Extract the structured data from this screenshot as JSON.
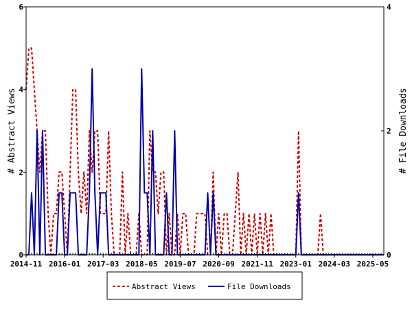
{
  "chart_data": {
    "type": "line",
    "title": "",
    "left_axis": {
      "label": "# Abstract Views",
      "ylim": [
        0,
        6
      ],
      "ticks": [
        "0",
        "2",
        "4",
        "6"
      ]
    },
    "right_axis": {
      "label": "# File Downloads",
      "ylim": [
        0,
        4
      ],
      "ticks": [
        "0",
        "2",
        "4"
      ]
    },
    "x_tick_labels": [
      "2014-11",
      "2016-01",
      "2017-03",
      "2018-05",
      "2019-07",
      "2020-09",
      "2021-11",
      "2023-01",
      "2024-03",
      "2025-05"
    ],
    "x_range": [
      "2014-11",
      "2025-09"
    ],
    "grid": false,
    "legend_position": "bottom-center",
    "series": [
      {
        "name": "Abstract Views",
        "axis": "left",
        "color": "#cc0000",
        "style": "dashed",
        "points": [
          [
            "2014-11",
            4
          ],
          [
            "2014-12",
            5
          ],
          [
            "2015-01",
            5
          ],
          [
            "2015-02",
            4
          ],
          [
            "2015-03",
            3
          ],
          [
            "2015-04",
            2
          ],
          [
            "2015-05",
            3
          ],
          [
            "2015-06",
            3
          ],
          [
            "2015-07",
            1
          ],
          [
            "2015-08",
            0
          ],
          [
            "2015-09",
            1
          ],
          [
            "2015-10",
            1
          ],
          [
            "2015-11",
            2
          ],
          [
            "2015-12",
            2
          ],
          [
            "2016-01",
            1
          ],
          [
            "2016-02",
            0
          ],
          [
            "2016-03",
            2
          ],
          [
            "2016-04",
            4
          ],
          [
            "2016-05",
            4
          ],
          [
            "2016-06",
            2
          ],
          [
            "2016-07",
            1
          ],
          [
            "2016-08",
            2
          ],
          [
            "2016-09",
            1
          ],
          [
            "2016-10",
            3
          ],
          [
            "2016-11",
            2
          ],
          [
            "2016-12",
            3
          ],
          [
            "2017-01",
            3
          ],
          [
            "2017-02",
            1
          ],
          [
            "2017-03",
            1
          ],
          [
            "2017-04",
            1
          ],
          [
            "2017-05",
            3
          ],
          [
            "2017-06",
            1
          ],
          [
            "2017-07",
            0
          ],
          [
            "2017-08",
            0
          ],
          [
            "2017-09",
            0
          ],
          [
            "2017-10",
            2
          ],
          [
            "2017-11",
            0
          ],
          [
            "2017-12",
            1
          ],
          [
            "2018-01",
            0
          ],
          [
            "2018-02",
            0
          ],
          [
            "2018-03",
            0
          ],
          [
            "2018-04",
            1
          ],
          [
            "2018-05",
            0
          ],
          [
            "2018-06",
            0
          ],
          [
            "2018-07",
            0
          ],
          [
            "2018-08",
            3
          ],
          [
            "2018-09",
            2
          ],
          [
            "2018-10",
            2
          ],
          [
            "2018-11",
            1
          ],
          [
            "2018-12",
            2
          ],
          [
            "2019-01",
            2
          ],
          [
            "2019-02",
            0
          ],
          [
            "2019-03",
            1
          ],
          [
            "2019-04",
            0
          ],
          [
            "2019-05",
            0
          ],
          [
            "2019-06",
            1
          ],
          [
            "2019-07",
            0
          ],
          [
            "2019-08",
            1
          ],
          [
            "2019-09",
            1
          ],
          [
            "2019-10",
            0
          ],
          [
            "2019-11",
            0
          ],
          [
            "2019-12",
            0
          ],
          [
            "2020-01",
            1
          ],
          [
            "2020-02",
            1
          ],
          [
            "2020-03",
            1
          ],
          [
            "2020-04",
            1
          ],
          [
            "2020-05",
            0
          ],
          [
            "2020-06",
            0
          ],
          [
            "2020-07",
            2
          ],
          [
            "2020-08",
            0
          ],
          [
            "2020-09",
            1
          ],
          [
            "2020-10",
            0
          ],
          [
            "2020-11",
            1
          ],
          [
            "2020-12",
            1
          ],
          [
            "2021-01",
            0
          ],
          [
            "2021-02",
            0
          ],
          [
            "2021-03",
            1
          ],
          [
            "2021-04",
            2
          ],
          [
            "2021-05",
            0
          ],
          [
            "2021-06",
            1
          ],
          [
            "2021-07",
            0
          ],
          [
            "2021-08",
            1
          ],
          [
            "2021-09",
            0
          ],
          [
            "2021-10",
            1
          ],
          [
            "2021-11",
            0
          ],
          [
            "2021-12",
            1
          ],
          [
            "2022-01",
            0
          ],
          [
            "2022-02",
            1
          ],
          [
            "2022-03",
            0
          ],
          [
            "2022-04",
            1
          ],
          [
            "2022-05",
            0
          ],
          [
            "2022-06",
            0
          ],
          [
            "2022-07",
            0
          ],
          [
            "2022-08",
            0
          ],
          [
            "2022-09",
            0
          ],
          [
            "2022-10",
            0
          ],
          [
            "2022-11",
            0
          ],
          [
            "2022-12",
            0
          ],
          [
            "2023-01",
            0
          ],
          [
            "2023-02",
            3
          ],
          [
            "2023-03",
            0
          ],
          [
            "2023-04",
            0
          ],
          [
            "2023-05",
            0
          ],
          [
            "2023-06",
            0
          ],
          [
            "2023-07",
            0
          ],
          [
            "2023-08",
            0
          ],
          [
            "2023-09",
            0
          ],
          [
            "2023-10",
            1
          ],
          [
            "2023-11",
            0
          ],
          [
            "2023-12",
            0
          ],
          [
            "2024-01",
            0
          ],
          [
            "2024-02",
            0
          ],
          [
            "2024-03",
            0
          ],
          [
            "2024-04",
            0
          ],
          [
            "2024-05",
            0
          ],
          [
            "2024-06",
            0
          ],
          [
            "2024-07",
            0
          ],
          [
            "2024-08",
            0
          ],
          [
            "2024-09",
            0
          ],
          [
            "2024-10",
            0
          ],
          [
            "2024-11",
            0
          ],
          [
            "2024-12",
            0
          ],
          [
            "2025-01",
            0
          ],
          [
            "2025-02",
            0
          ],
          [
            "2025-03",
            0
          ],
          [
            "2025-04",
            0
          ],
          [
            "2025-05",
            0
          ],
          [
            "2025-06",
            0
          ],
          [
            "2025-07",
            0
          ],
          [
            "2025-08",
            0
          ],
          [
            "2025-09",
            0
          ]
        ]
      },
      {
        "name": "File Downloads",
        "axis": "right",
        "color": "#0000aa",
        "style": "solid",
        "points": [
          [
            "2014-11",
            0
          ],
          [
            "2014-12",
            0
          ],
          [
            "2015-01",
            1
          ],
          [
            "2015-02",
            0
          ],
          [
            "2015-03",
            2
          ],
          [
            "2015-04",
            0
          ],
          [
            "2015-05",
            2
          ],
          [
            "2015-06",
            0
          ],
          [
            "2015-07",
            0
          ],
          [
            "2015-08",
            0
          ],
          [
            "2015-09",
            0
          ],
          [
            "2015-10",
            0
          ],
          [
            "2015-11",
            1
          ],
          [
            "2015-12",
            1
          ],
          [
            "2016-01",
            0
          ],
          [
            "2016-02",
            0
          ],
          [
            "2016-03",
            1
          ],
          [
            "2016-04",
            1
          ],
          [
            "2016-05",
            1
          ],
          [
            "2016-06",
            0
          ],
          [
            "2016-07",
            0
          ],
          [
            "2016-08",
            0
          ],
          [
            "2016-09",
            0
          ],
          [
            "2016-10",
            1
          ],
          [
            "2016-11",
            3
          ],
          [
            "2016-12",
            1
          ],
          [
            "2017-01",
            0
          ],
          [
            "2017-02",
            1
          ],
          [
            "2017-03",
            1
          ],
          [
            "2017-04",
            1
          ],
          [
            "2017-05",
            0
          ],
          [
            "2017-06",
            0
          ],
          [
            "2017-07",
            0
          ],
          [
            "2017-08",
            0
          ],
          [
            "2017-09",
            0
          ],
          [
            "2017-10",
            0
          ],
          [
            "2017-11",
            0
          ],
          [
            "2017-12",
            0
          ],
          [
            "2018-01",
            0
          ],
          [
            "2018-02",
            0
          ],
          [
            "2018-03",
            0
          ],
          [
            "2018-04",
            0
          ],
          [
            "2018-05",
            3
          ],
          [
            "2018-06",
            1
          ],
          [
            "2018-07",
            1
          ],
          [
            "2018-08",
            0
          ],
          [
            "2018-09",
            2
          ],
          [
            "2018-10",
            0
          ],
          [
            "2018-11",
            0
          ],
          [
            "2018-12",
            0
          ],
          [
            "2019-01",
            0
          ],
          [
            "2019-02",
            1
          ],
          [
            "2019-03",
            0
          ],
          [
            "2019-04",
            0
          ],
          [
            "2019-05",
            2
          ],
          [
            "2019-06",
            0
          ],
          [
            "2019-07",
            0
          ],
          [
            "2019-08",
            0
          ],
          [
            "2019-09",
            0
          ],
          [
            "2019-10",
            0
          ],
          [
            "2019-11",
            0
          ],
          [
            "2019-12",
            0
          ],
          [
            "2020-01",
            0
          ],
          [
            "2020-02",
            0
          ],
          [
            "2020-03",
            0
          ],
          [
            "2020-04",
            0
          ],
          [
            "2020-05",
            1
          ],
          [
            "2020-06",
            0
          ],
          [
            "2020-07",
            1
          ],
          [
            "2020-08",
            0
          ],
          [
            "2020-09",
            0
          ],
          [
            "2020-10",
            0
          ],
          [
            "2020-11",
            0
          ],
          [
            "2020-12",
            0
          ],
          [
            "2021-01",
            0
          ],
          [
            "2021-02",
            0
          ],
          [
            "2021-03",
            0
          ],
          [
            "2021-04",
            0
          ],
          [
            "2021-05",
            0
          ],
          [
            "2021-06",
            0
          ],
          [
            "2021-07",
            0
          ],
          [
            "2021-08",
            0
          ],
          [
            "2021-09",
            0
          ],
          [
            "2021-10",
            0
          ],
          [
            "2021-11",
            0
          ],
          [
            "2021-12",
            0
          ],
          [
            "2022-01",
            0
          ],
          [
            "2022-02",
            0
          ],
          [
            "2022-03",
            0
          ],
          [
            "2022-04",
            0
          ],
          [
            "2022-05",
            0
          ],
          [
            "2022-06",
            0
          ],
          [
            "2022-07",
            0
          ],
          [
            "2022-08",
            0
          ],
          [
            "2022-09",
            0
          ],
          [
            "2022-10",
            0
          ],
          [
            "2022-11",
            0
          ],
          [
            "2022-12",
            0
          ],
          [
            "2023-01",
            0
          ],
          [
            "2023-02",
            1
          ],
          [
            "2023-03",
            0
          ],
          [
            "2023-04",
            0
          ],
          [
            "2023-05",
            0
          ],
          [
            "2023-06",
            0
          ],
          [
            "2023-07",
            0
          ],
          [
            "2023-08",
            0
          ],
          [
            "2023-09",
            0
          ],
          [
            "2023-10",
            0
          ],
          [
            "2023-11",
            0
          ],
          [
            "2023-12",
            0
          ],
          [
            "2024-01",
            0
          ],
          [
            "2024-02",
            0
          ],
          [
            "2024-03",
            0
          ],
          [
            "2024-04",
            0
          ],
          [
            "2024-05",
            0
          ],
          [
            "2024-06",
            0
          ],
          [
            "2024-07",
            0
          ],
          [
            "2024-08",
            0
          ],
          [
            "2024-09",
            0
          ],
          [
            "2024-10",
            0
          ],
          [
            "2024-11",
            0
          ],
          [
            "2024-12",
            0
          ],
          [
            "2025-01",
            0
          ],
          [
            "2025-02",
            0
          ],
          [
            "2025-03",
            0
          ],
          [
            "2025-04",
            0
          ],
          [
            "2025-05",
            0
          ],
          [
            "2025-06",
            0
          ],
          [
            "2025-07",
            0
          ],
          [
            "2025-08",
            0
          ],
          [
            "2025-09",
            0
          ]
        ]
      }
    ]
  }
}
